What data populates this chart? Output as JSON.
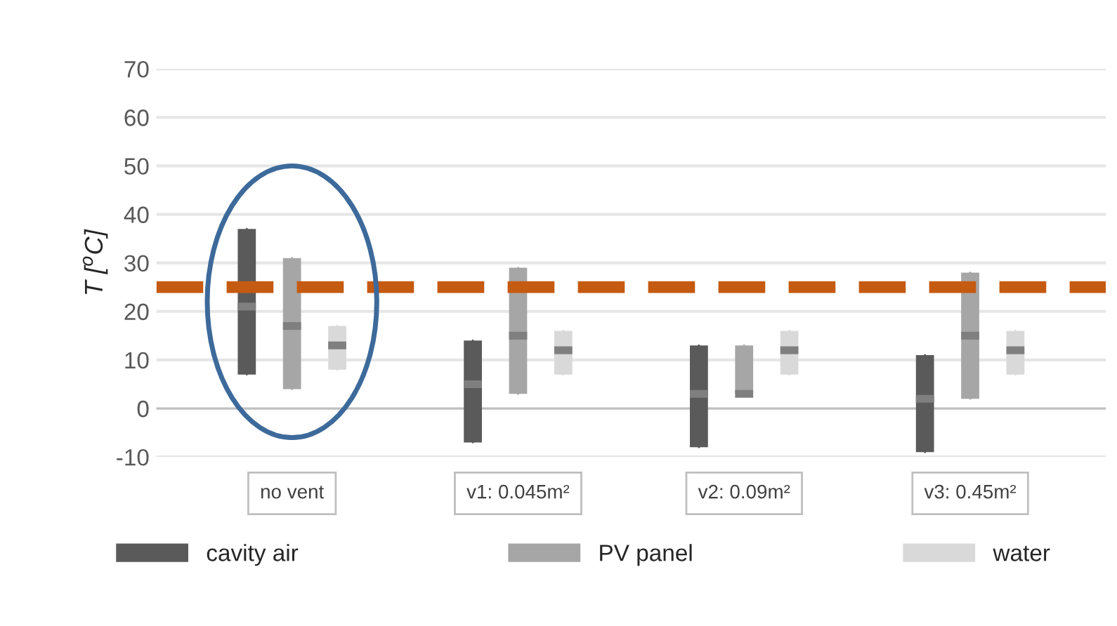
{
  "chart_data": {
    "type": "box",
    "ylabel": "T [$^{o}$C]",
    "categories": [
      "no vent",
      "v1: 0.045m²",
      "v2: 0.09m²",
      "v3: 0.45m²"
    ],
    "series": [
      {
        "name": "cavity air",
        "color": "#5a5a5a",
        "boxes": [
          {
            "low": 7,
            "q1": 7,
            "median": 21,
            "q3": 37,
            "high": 37
          },
          {
            "low": -7,
            "q1": -7,
            "median": 5,
            "q3": 14,
            "high": 14
          },
          {
            "low": -8,
            "q1": -8,
            "median": 3,
            "q3": 13,
            "high": 13
          },
          {
            "low": -9,
            "q1": -9,
            "median": 2,
            "q3": 11,
            "high": 11
          }
        ]
      },
      {
        "name": "PV panel",
        "color": "#a6a6a6",
        "boxes": [
          {
            "low": 4,
            "q1": 4,
            "median": 17,
            "q3": 31,
            "high": 31
          },
          {
            "low": 3,
            "q1": 3,
            "median": 15,
            "q3": 29,
            "high": 29
          },
          {
            "low": 3,
            "q1": 3,
            "median": 3,
            "q3": 13,
            "high": 13
          },
          {
            "low": 2,
            "q1": 2,
            "median": 15,
            "q3": 28,
            "high": 28
          }
        ]
      },
      {
        "name": "water",
        "color": "#d9d9d9",
        "boxes": [
          {
            "low": 8,
            "q1": 8,
            "median": 13,
            "q3": 17,
            "high": 17
          },
          {
            "low": 7,
            "q1": 7,
            "median": 12,
            "q3": 16,
            "high": 16
          },
          {
            "low": 7,
            "q1": 7,
            "median": 12,
            "q3": 16,
            "high": 16
          },
          {
            "low": 7,
            "q1": 7,
            "median": 12,
            "q3": 16,
            "high": 16
          }
        ]
      }
    ],
    "ylim": [
      -10,
      70
    ],
    "yticks": [
      -10,
      0,
      10,
      20,
      30,
      40,
      50,
      60,
      70
    ],
    "grid": "y",
    "legend": "bottom",
    "ref_lines": [
      {
        "axis": "y",
        "value": 25,
        "color": "#c55a11",
        "line_style": "dashed"
      }
    ]
  }
}
